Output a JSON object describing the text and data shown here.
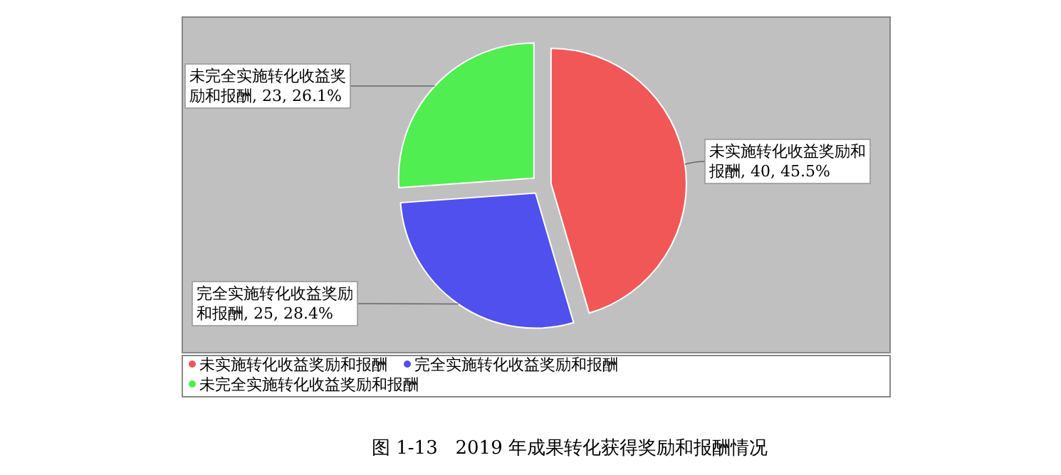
{
  "chart_data": {
    "type": "pie",
    "title": "图 1-13   2019 年成果转化获得奖励和报酬情况",
    "categories": [
      "未实施转化收益奖励和报酬",
      "完全实施转化收益奖励和报酬",
      "未完全实施转化收益奖励和报酬"
    ],
    "values": [
      40,
      25,
      23
    ],
    "colors": [
      "#f25757",
      "#5050ee",
      "#50ee50"
    ],
    "value_labels": [
      "未实施转化收益奖励和报酬, 40, 45.5%",
      "完全实施转化收益奖励和报酬, 25, 28.4%",
      "未完全实施转化收益奖励和报酬, 23, 26.1%"
    ],
    "legend": "bottom"
  }
}
